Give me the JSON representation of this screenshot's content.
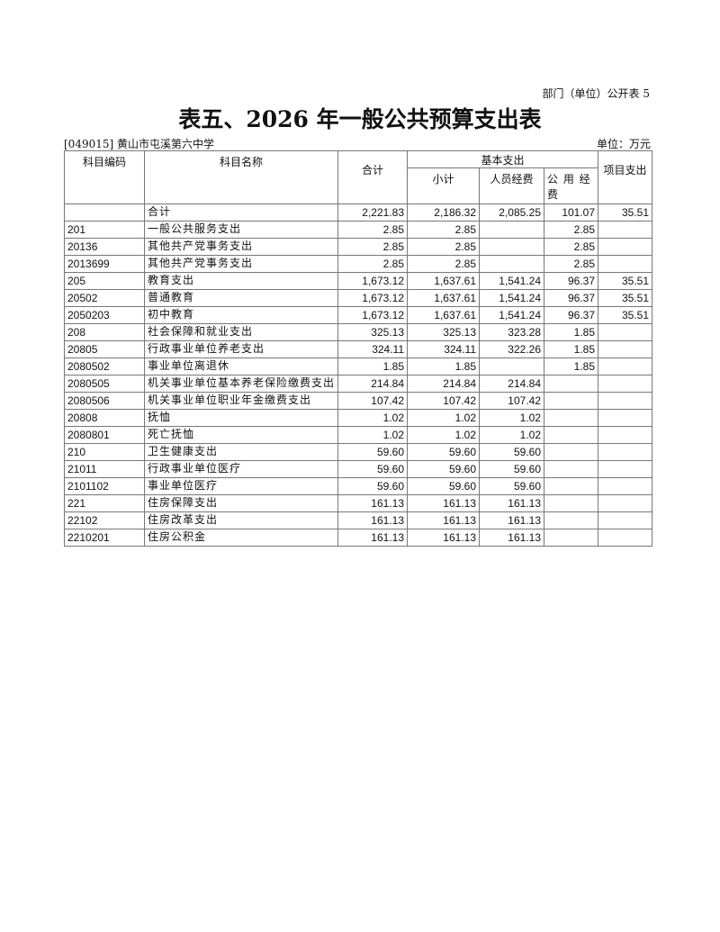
{
  "header": {
    "top_note": "部门（单位）公开表 5",
    "title": "表五、2026 年一般公共预算支出表",
    "org": "[049015] 黄山市屯溪第六中学",
    "unit": "单位：万元"
  },
  "columns": {
    "code": "科目编码",
    "name": "科目名称",
    "total": "合计",
    "basic": "基本支出",
    "subtotal": "小计",
    "personnel": "人员经费",
    "public": "公 用 经 费",
    "project": "项目支出"
  },
  "rows": [
    {
      "code": "",
      "name": "合计",
      "total": "2,221.83",
      "subtotal": "2,186.32",
      "personnel": "2,085.25",
      "public": "101.07",
      "project": "35.51"
    },
    {
      "code": "201",
      "name": "一般公共服务支出",
      "total": "2.85",
      "subtotal": "2.85",
      "personnel": "",
      "public": "2.85",
      "project": ""
    },
    {
      "code": "20136",
      "name": "其他共产党事务支出",
      "total": "2.85",
      "subtotal": "2.85",
      "personnel": "",
      "public": "2.85",
      "project": ""
    },
    {
      "code": "2013699",
      "name": "其他共产党事务支出",
      "total": "2.85",
      "subtotal": "2.85",
      "personnel": "",
      "public": "2.85",
      "project": ""
    },
    {
      "code": "205",
      "name": "教育支出",
      "total": "1,673.12",
      "subtotal": "1,637.61",
      "personnel": "1,541.24",
      "public": "96.37",
      "project": "35.51"
    },
    {
      "code": "20502",
      "name": "普通教育",
      "total": "1,673.12",
      "subtotal": "1,637.61",
      "personnel": "1,541.24",
      "public": "96.37",
      "project": "35.51"
    },
    {
      "code": "2050203",
      "name": "初中教育",
      "total": "1,673.12",
      "subtotal": "1,637.61",
      "personnel": "1,541.24",
      "public": "96.37",
      "project": "35.51"
    },
    {
      "code": "208",
      "name": "社会保障和就业支出",
      "total": "325.13",
      "subtotal": "325.13",
      "personnel": "323.28",
      "public": "1.85",
      "project": ""
    },
    {
      "code": "20805",
      "name": "行政事业单位养老支出",
      "total": "324.11",
      "subtotal": "324.11",
      "personnel": "322.26",
      "public": "1.85",
      "project": ""
    },
    {
      "code": "2080502",
      "name": "事业单位离退休",
      "total": "1.85",
      "subtotal": "1.85",
      "personnel": "",
      "public": "1.85",
      "project": ""
    },
    {
      "code": "2080505",
      "name": "机关事业单位基本养老保险缴费支出",
      "total": "214.84",
      "subtotal": "214.84",
      "personnel": "214.84",
      "public": "",
      "project": ""
    },
    {
      "code": "2080506",
      "name": "机关事业单位职业年金缴费支出",
      "total": "107.42",
      "subtotal": "107.42",
      "personnel": "107.42",
      "public": "",
      "project": ""
    },
    {
      "code": "20808",
      "name": "抚恤",
      "total": "1.02",
      "subtotal": "1.02",
      "personnel": "1.02",
      "public": "",
      "project": ""
    },
    {
      "code": "2080801",
      "name": "死亡抚恤",
      "total": "1.02",
      "subtotal": "1.02",
      "personnel": "1.02",
      "public": "",
      "project": ""
    },
    {
      "code": "210",
      "name": "卫生健康支出",
      "total": "59.60",
      "subtotal": "59.60",
      "personnel": "59.60",
      "public": "",
      "project": ""
    },
    {
      "code": "21011",
      "name": "行政事业单位医疗",
      "total": "59.60",
      "subtotal": "59.60",
      "personnel": "59.60",
      "public": "",
      "project": ""
    },
    {
      "code": "2101102",
      "name": "事业单位医疗",
      "total": "59.60",
      "subtotal": "59.60",
      "personnel": "59.60",
      "public": "",
      "project": ""
    },
    {
      "code": "221",
      "name": "住房保障支出",
      "total": "161.13",
      "subtotal": "161.13",
      "personnel": "161.13",
      "public": "",
      "project": ""
    },
    {
      "code": "22102",
      "name": "住房改革支出",
      "total": "161.13",
      "subtotal": "161.13",
      "personnel": "161.13",
      "public": "",
      "project": ""
    },
    {
      "code": "2210201",
      "name": "住房公积金",
      "total": "161.13",
      "subtotal": "161.13",
      "personnel": "161.13",
      "public": "",
      "project": ""
    }
  ]
}
